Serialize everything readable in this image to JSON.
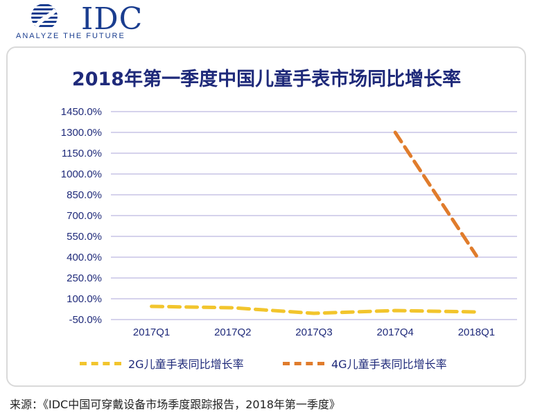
{
  "header": {
    "logo_word": "IDC",
    "logo_tagline": "ANALYZE THE FUTURE",
    "brand_color": "#1a3d8f"
  },
  "chart_data": {
    "type": "line",
    "title": "2018年第一季度中国儿童手表市场同比增长率",
    "categories": [
      "2017Q1",
      "2017Q2",
      "2017Q3",
      "2017Q4",
      "2018Q1"
    ],
    "y_ticks": [
      "1450.0%",
      "1300.0%",
      "1150.0%",
      "1000.0%",
      "850.0%",
      "700.0%",
      "550.0%",
      "400.0%",
      "250.0%",
      "100.0%",
      "-50.0%"
    ],
    "ylim": [
      -50,
      1450
    ],
    "grid": true,
    "legend_position": "bottom",
    "series": [
      {
        "name": "2G儿童手表同比增长率",
        "color": "#f2c52d",
        "values": [
          45,
          35,
          -5,
          15,
          5
        ]
      },
      {
        "name": "4G儿童手表同比增长率",
        "color": "#e07c2c",
        "values": [
          null,
          null,
          null,
          1300,
          410
        ]
      }
    ]
  },
  "source_note": "来源：《IDC中国可穿戴设备市场季度跟踪报告，2018年第一季度》"
}
